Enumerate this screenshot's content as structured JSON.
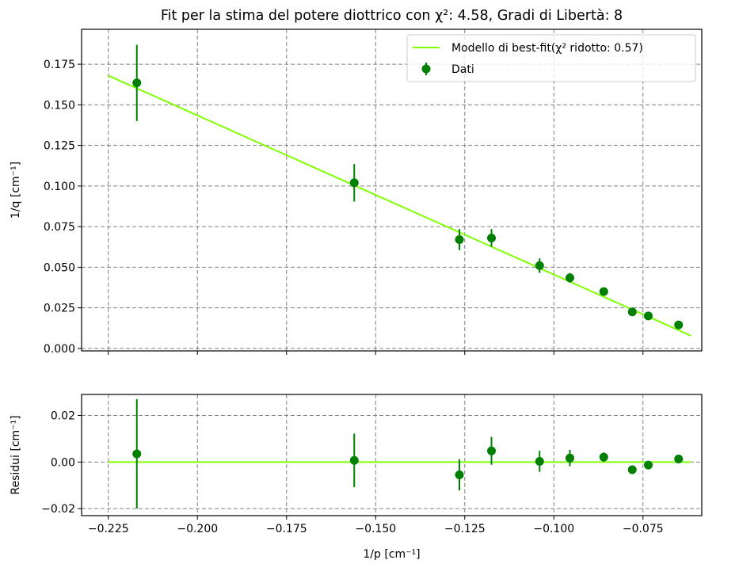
{
  "chart_data": [
    {
      "type": "scatter",
      "title": "Fit per la stima del potere diottrico con χ²: 4.58, Gradi di Libertà: 8",
      "xlabel": "1/p [cm⁻¹]",
      "ylabel": "1/q [cm⁻¹]",
      "xlim": [
        -0.2325,
        -0.0585
      ],
      "ylim": [
        -0.0015,
        0.1965
      ],
      "grid": true,
      "legend_position": "top-right",
      "x_ticks": [
        -0.225,
        -0.2,
        -0.175,
        -0.15,
        -0.125,
        -0.1,
        -0.075
      ],
      "x_tick_labels": [
        "−0.225",
        "−0.200",
        "−0.175",
        "−0.150",
        "−0.125",
        "−0.100",
        "−0.075"
      ],
      "y_ticks": [
        0.0,
        0.025,
        0.05,
        0.075,
        0.1,
        0.125,
        0.15,
        0.175
      ],
      "y_tick_labels": [
        "0.000",
        "0.025",
        "0.050",
        "0.075",
        "0.100",
        "0.125",
        "0.150",
        "0.175"
      ],
      "series": [
        {
          "name": "Modello di best-fit(χ² ridotto: 0.57)",
          "kind": "line",
          "color": "#7fff00",
          "x": [
            -0.225,
            -0.0615
          ],
          "y": [
            0.168,
            0.0078
          ]
        },
        {
          "name": "Dati",
          "kind": "errorbar",
          "color": "#008000",
          "x": [
            -0.217,
            -0.156,
            -0.1265,
            -0.1175,
            -0.104,
            -0.0955,
            -0.086,
            -0.078,
            -0.0735,
            -0.065
          ],
          "y": [
            0.1635,
            0.102,
            0.067,
            0.068,
            0.051,
            0.0435,
            0.035,
            0.0225,
            0.02,
            0.0145
          ],
          "yerr": [
            0.0235,
            0.0115,
            0.0065,
            0.0055,
            0.0045,
            0.003,
            0.002,
            0.0015,
            0.0012,
            0.001
          ]
        }
      ]
    },
    {
      "type": "scatter",
      "xlabel": "1/p [cm⁻¹]",
      "ylabel": "Residui [cm⁻¹]",
      "xlim": [
        -0.2325,
        -0.0585
      ],
      "ylim": [
        -0.023,
        0.029
      ],
      "grid": true,
      "x_ticks": [
        -0.225,
        -0.2,
        -0.175,
        -0.15,
        -0.125,
        -0.1,
        -0.075
      ],
      "x_tick_labels": [
        "−0.225",
        "−0.200",
        "−0.175",
        "−0.150",
        "−0.125",
        "−0.100",
        "−0.075"
      ],
      "y_ticks": [
        -0.02,
        0.0,
        0.02
      ],
      "y_tick_labels": [
        "−0.02",
        "0.00",
        "0.02"
      ],
      "series": [
        {
          "kind": "line",
          "color": "#7fff00",
          "x": [
            -0.225,
            -0.0615
          ],
          "y": [
            0.0,
            0.0
          ]
        },
        {
          "kind": "errorbar",
          "color": "#008000",
          "x": [
            -0.217,
            -0.156,
            -0.1265,
            -0.1175,
            -0.104,
            -0.0955,
            -0.086,
            -0.078,
            -0.0735,
            -0.065
          ],
          "y": [
            0.0035,
            0.0007,
            -0.0055,
            0.0048,
            0.0003,
            0.0017,
            0.0021,
            -0.0033,
            -0.0013,
            0.0013
          ],
          "yerr": [
            0.0235,
            0.0115,
            0.0067,
            0.006,
            0.0045,
            0.0035,
            0.002,
            0.0018,
            0.0014,
            0.001
          ]
        }
      ]
    }
  ]
}
